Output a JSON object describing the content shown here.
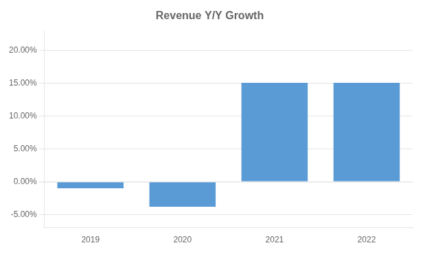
{
  "chart_data": {
    "type": "bar",
    "title": "Revenue Y/Y Growth",
    "categories": [
      "2019",
      "2020",
      "2021",
      "2022"
    ],
    "values": [
      -0.01,
      -0.038,
      0.151,
      0.151
    ],
    "color": "#5B9BD5",
    "ylim": [
      -0.07,
      0.23
    ],
    "yticks": [
      {
        "value": -0.05,
        "label": "-5.00%"
      },
      {
        "value": 0.0,
        "label": "0.00%"
      },
      {
        "value": 0.05,
        "label": "5.00%"
      },
      {
        "value": 0.1,
        "label": "10.00%"
      },
      {
        "value": 0.15,
        "label": "15.00%"
      },
      {
        "value": 0.2,
        "label": "20.00%"
      }
    ],
    "grid": true
  }
}
